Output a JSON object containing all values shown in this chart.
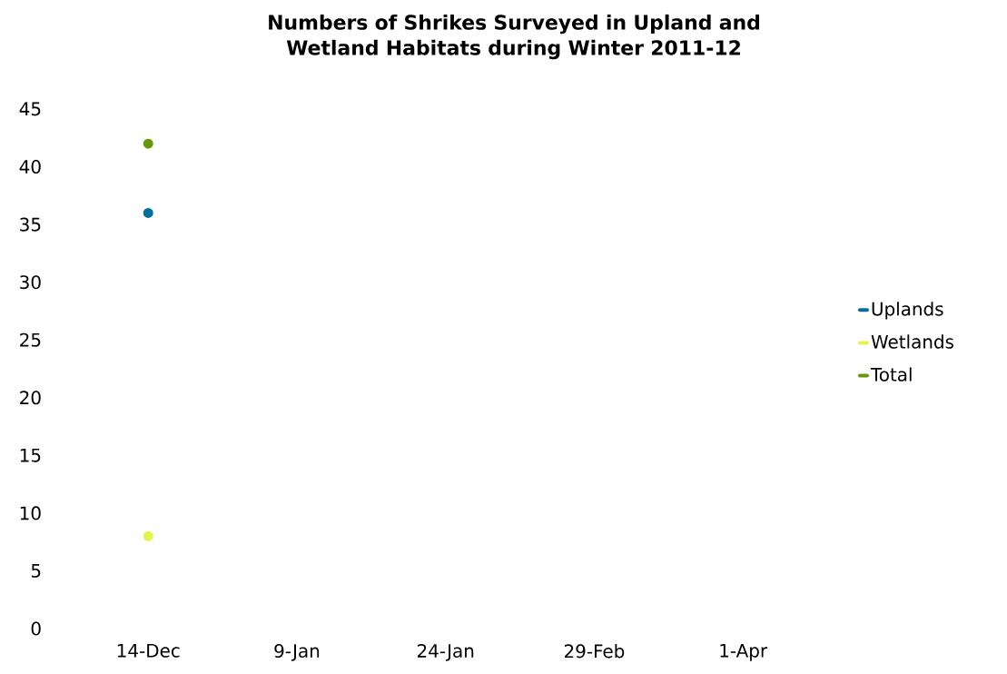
{
  "chart_data": {
    "type": "line",
    "title": "Numbers of Shrikes Surveyed in Upland and Wetland Habitats during Winter 2011-12",
    "categories": [
      "14-Dec",
      "9-Jan",
      "24-Jan",
      "29-Feb",
      "1-Apr"
    ],
    "series": [
      {
        "name": "Uplands",
        "color": "#00719c",
        "values": [
          36,
          null,
          null,
          null,
          null
        ]
      },
      {
        "name": "Wetlands",
        "color": "#e3f44a",
        "values": [
          8,
          null,
          null,
          null,
          null
        ]
      },
      {
        "name": "Total",
        "color": "#649a08",
        "values": [
          42,
          null,
          null,
          null,
          null
        ]
      }
    ],
    "ylim": [
      0,
      45
    ],
    "yticks": [
      0,
      5,
      10,
      15,
      20,
      25,
      30,
      35,
      40,
      45
    ],
    "marker": "circle",
    "legend": "right"
  }
}
